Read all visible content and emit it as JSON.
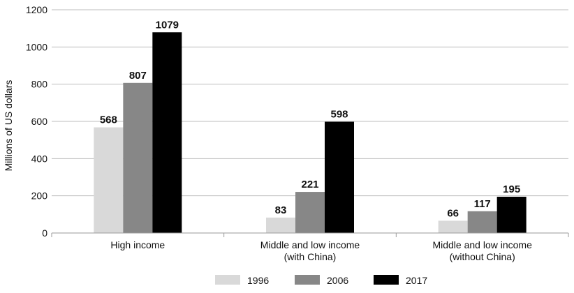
{
  "chart_data": {
    "type": "bar",
    "categories": [
      [
        "High income"
      ],
      [
        "Middle and low income",
        "(with China)"
      ],
      [
        "Middle and low income",
        "(without China)"
      ]
    ],
    "series": [
      {
        "name": "1996",
        "color": "#d9d9d9",
        "values": [
          568,
          83,
          66
        ]
      },
      {
        "name": "2006",
        "color": "#878787",
        "values": [
          807,
          221,
          117
        ]
      },
      {
        "name": "2017",
        "color": "#000000",
        "values": [
          1079,
          598,
          195
        ]
      }
    ],
    "ylabel": "Millions of US dollars",
    "xlabel": "",
    "title": "",
    "ylim": [
      0,
      1200
    ],
    "yticks": [
      0,
      200,
      400,
      600,
      800,
      1000,
      1200
    ],
    "grid": true,
    "legend_position": "bottom"
  }
}
